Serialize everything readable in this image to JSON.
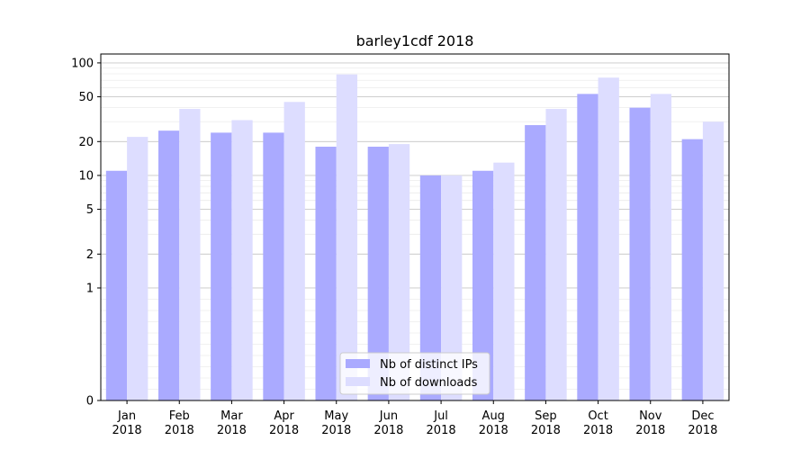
{
  "chart_data": {
    "type": "bar",
    "title": "barley1cdf 2018",
    "xlabel": "",
    "ylabel": "",
    "yscale": "symlog",
    "ylim": [
      0,
      120
    ],
    "y_ticks": [
      0,
      1,
      2,
      5,
      10,
      20,
      50,
      100
    ],
    "y_tick_labels": [
      "0",
      "1",
      "2",
      "5",
      "10",
      "20",
      "50",
      "100"
    ],
    "grid": "horizontal",
    "legend_position": "bottom-center",
    "categories": [
      [
        "Jan",
        "2018"
      ],
      [
        "Feb",
        "2018"
      ],
      [
        "Mar",
        "2018"
      ],
      [
        "Apr",
        "2018"
      ],
      [
        "May",
        "2018"
      ],
      [
        "Jun",
        "2018"
      ],
      [
        "Jul",
        "2018"
      ],
      [
        "Aug",
        "2018"
      ],
      [
        "Sep",
        "2018"
      ],
      [
        "Oct",
        "2018"
      ],
      [
        "Nov",
        "2018"
      ],
      [
        "Dec",
        "2018"
      ]
    ],
    "series": [
      {
        "name": "Nb of distinct IPs",
        "color": "#aaaaff",
        "values": [
          11,
          25,
          24,
          24,
          18,
          18,
          10,
          11,
          28,
          53,
          40,
          21
        ]
      },
      {
        "name": "Nb of downloads",
        "color": "#ddddff",
        "values": [
          22,
          39,
          31,
          45,
          79,
          19,
          10,
          13,
          39,
          74,
          53,
          30
        ]
      }
    ]
  }
}
